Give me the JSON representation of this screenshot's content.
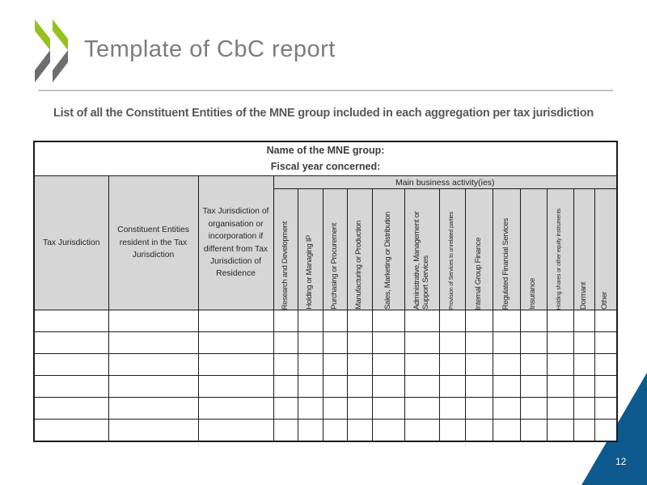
{
  "header": {
    "title": "Template of CbC report"
  },
  "subtitle": "List of all the Constituent Entities of the MNE group included in each aggregation per tax jurisdiction",
  "table": {
    "name_line": "Name of the MNE group:",
    "fiscal_line": "Fiscal year concerned:",
    "main_business_label": "Main business activity(ies)",
    "columns": [
      "Tax Jurisdiction",
      "Constituent Entities resident in the Tax Jurisdiction",
      "Tax Jurisdiction of organisation or incorporation if different from Tax Jurisdiction of Residence"
    ],
    "activities": [
      {
        "label": "Research and Development"
      },
      {
        "label": "Holding or Managing IP"
      },
      {
        "label": "Purchasing or Procurement"
      },
      {
        "label": "Manufacturing or Production"
      },
      {
        "label": "Sales, Marketing or Distribution"
      },
      {
        "label": "Administrative, Management or Support Services"
      },
      {
        "label": "Provision of Services to unrelated parties"
      },
      {
        "label": "Internal Group Finance"
      },
      {
        "label": "Regulated Financial Services"
      },
      {
        "label": "Insurance"
      },
      {
        "label": "Holding shares or other equity instruments"
      },
      {
        "label": "Dormant"
      },
      {
        "label": "Other"
      }
    ],
    "empty_rows": 6
  },
  "footer": {
    "page_number": "12"
  },
  "colors": {
    "logo_green": "#95c11f",
    "logo_gray": "#6d6e70",
    "corner_blue": "#0e5a8e",
    "header_fill": "#d6d6d6"
  }
}
